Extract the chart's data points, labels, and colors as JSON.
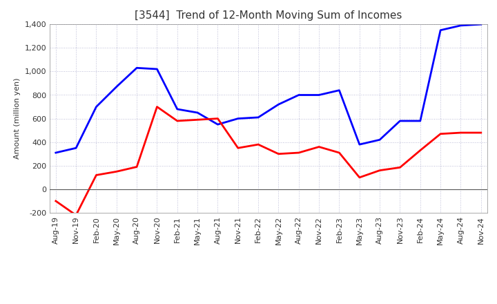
{
  "title": "[3544]  Trend of 12-Month Moving Sum of Incomes",
  "ylabel": "Amount (million yen)",
  "x_labels": [
    "Aug-19",
    "Nov-19",
    "Feb-20",
    "May-20",
    "Aug-20",
    "Nov-20",
    "Feb-21",
    "May-21",
    "Aug-21",
    "Nov-21",
    "Feb-22",
    "May-22",
    "Aug-22",
    "Nov-22",
    "Feb-23",
    "May-23",
    "Aug-23",
    "Nov-23",
    "Feb-24",
    "May-24",
    "Aug-24",
    "Nov-24"
  ],
  "ordinary_income": [
    310,
    350,
    700,
    870,
    1030,
    1020,
    680,
    650,
    550,
    600,
    610,
    720,
    800,
    800,
    840,
    380,
    420,
    580,
    580,
    1350,
    1390,
    1400
  ],
  "net_income": [
    -100,
    -220,
    120,
    150,
    190,
    700,
    580,
    590,
    600,
    350,
    380,
    300,
    310,
    360,
    310,
    100,
    160,
    185,
    330,
    470,
    480,
    480
  ],
  "ordinary_color": "#0000FF",
  "net_color": "#FF0000",
  "ylim": [
    -200,
    1400
  ],
  "yticks": [
    -200,
    0,
    200,
    400,
    600,
    800,
    1000,
    1200,
    1400
  ],
  "bg_color": "#FFFFFF",
  "plot_bg_color": "#FFFFFF",
  "grid_color": "#AAAACC",
  "title_fontsize": 11,
  "title_color": "#333333",
  "axis_fontsize": 8,
  "ylabel_fontsize": 8,
  "legend_fontsize": 9
}
